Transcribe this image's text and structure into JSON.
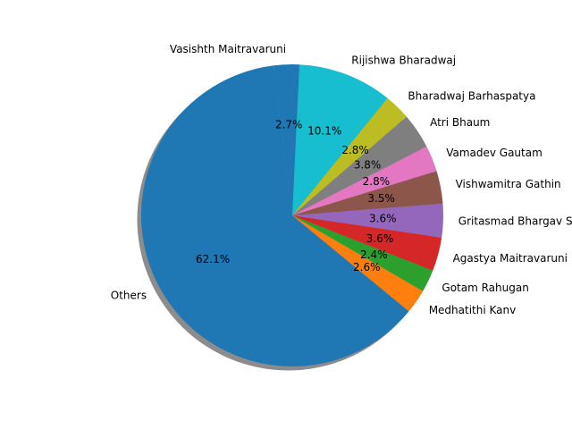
{
  "chart_data": {
    "type": "pie",
    "shadow": true,
    "start_angle_deg": 97,
    "direction": "counterclockwise",
    "slices": [
      {
        "label": "Others",
        "value": 62.1,
        "pct_label": "62.1%",
        "color": "#1f77b4"
      },
      {
        "label": "Medhatithi Kanv",
        "value": 2.6,
        "pct_label": "2.6%",
        "color": "#ff7f0e"
      },
      {
        "label": "Gotam Rahugan",
        "value": 2.4,
        "pct_label": "2.4%",
        "color": "#2ca02c"
      },
      {
        "label": "Agastya Maitravaruni",
        "value": 3.6,
        "pct_label": "3.6%",
        "color": "#d62728"
      },
      {
        "label": "Gritasmad Bhargav Shaunak",
        "value": 3.6,
        "pct_label": "3.6%",
        "color": "#9467bd"
      },
      {
        "label": "Vishwamitra Gathin",
        "value": 3.5,
        "pct_label": "3.5%",
        "color": "#8c564b"
      },
      {
        "label": "Vamadev Gautam",
        "value": 2.8,
        "pct_label": "2.8%",
        "color": "#e377c2"
      },
      {
        "label": "Atri Bhaum",
        "value": 3.8,
        "pct_label": "3.8%",
        "color": "#7f7f7f"
      },
      {
        "label": "Bharadwaj Barhaspatya",
        "value": 2.8,
        "pct_label": "2.8%",
        "color": "#bcbd22"
      },
      {
        "label": "Rijishwa Bharadwaj",
        "value": 10.1,
        "pct_label": "10.1%",
        "color": "#17becf"
      },
      {
        "label": "Vasishth Maitravaruni",
        "value": 2.7,
        "pct_label": "2.7%",
        "color": "#1f77b4"
      }
    ]
  }
}
